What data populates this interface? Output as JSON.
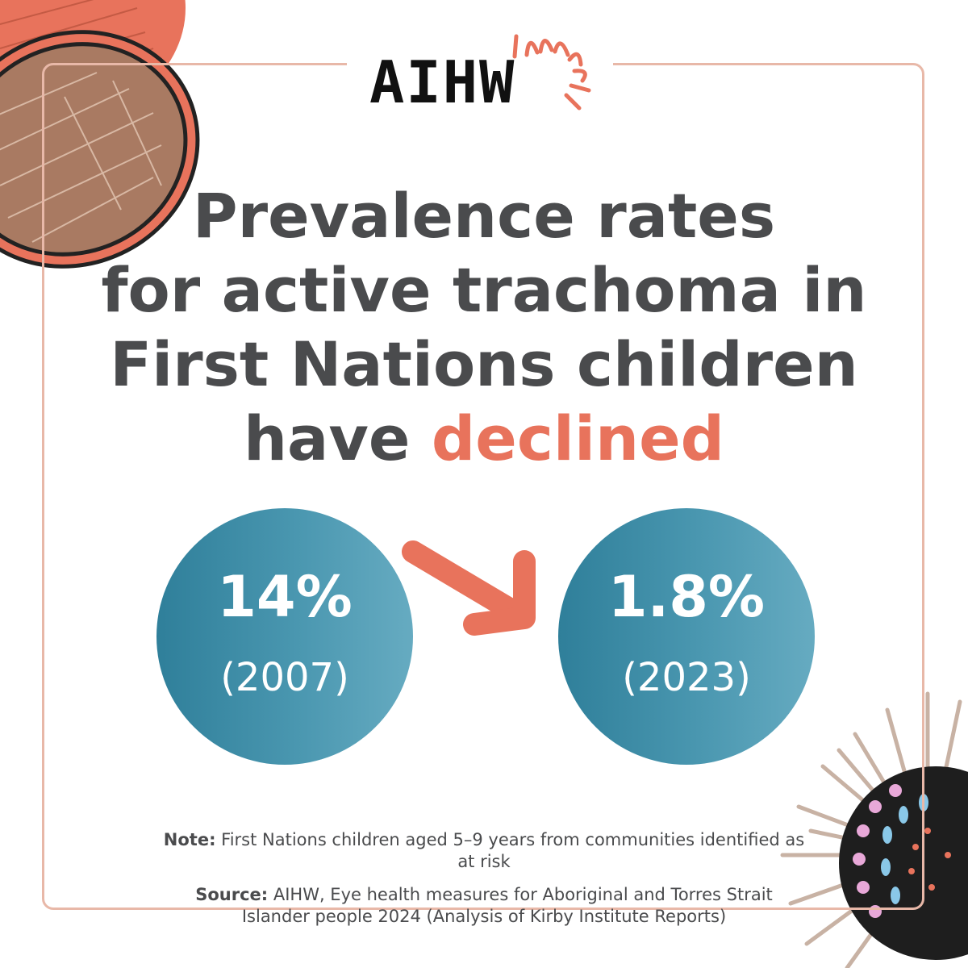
{
  "logo": {
    "text": "AIHW"
  },
  "headline": {
    "line1": "Prevalence rates",
    "line2": "for active trachoma in",
    "line3": "First Nations children",
    "line4_prefix": "have ",
    "line4_highlight": "declined"
  },
  "stats": [
    {
      "value": "14%",
      "year": "(2007)"
    },
    {
      "value": "1.8%",
      "year": "(2023)"
    }
  ],
  "note": {
    "label": "Note:",
    "text": " First Nations children aged 5–9 years from communities identified as at risk"
  },
  "source": {
    "label": "Source:",
    "text": " AIHW, Eye health measures for Aboriginal and Torres Strait Islander people 2024 (Analysis of Kirby Institute Reports)"
  },
  "colors": {
    "accent": "#e8735c",
    "text": "#4a4b4d",
    "teal": "#3a8aa5",
    "frame": "#e8b8a8"
  },
  "icons": [
    "aboriginal-art-top-left",
    "aboriginal-art-bottom-right",
    "logo-burst-icon",
    "down-right-arrow-icon"
  ]
}
